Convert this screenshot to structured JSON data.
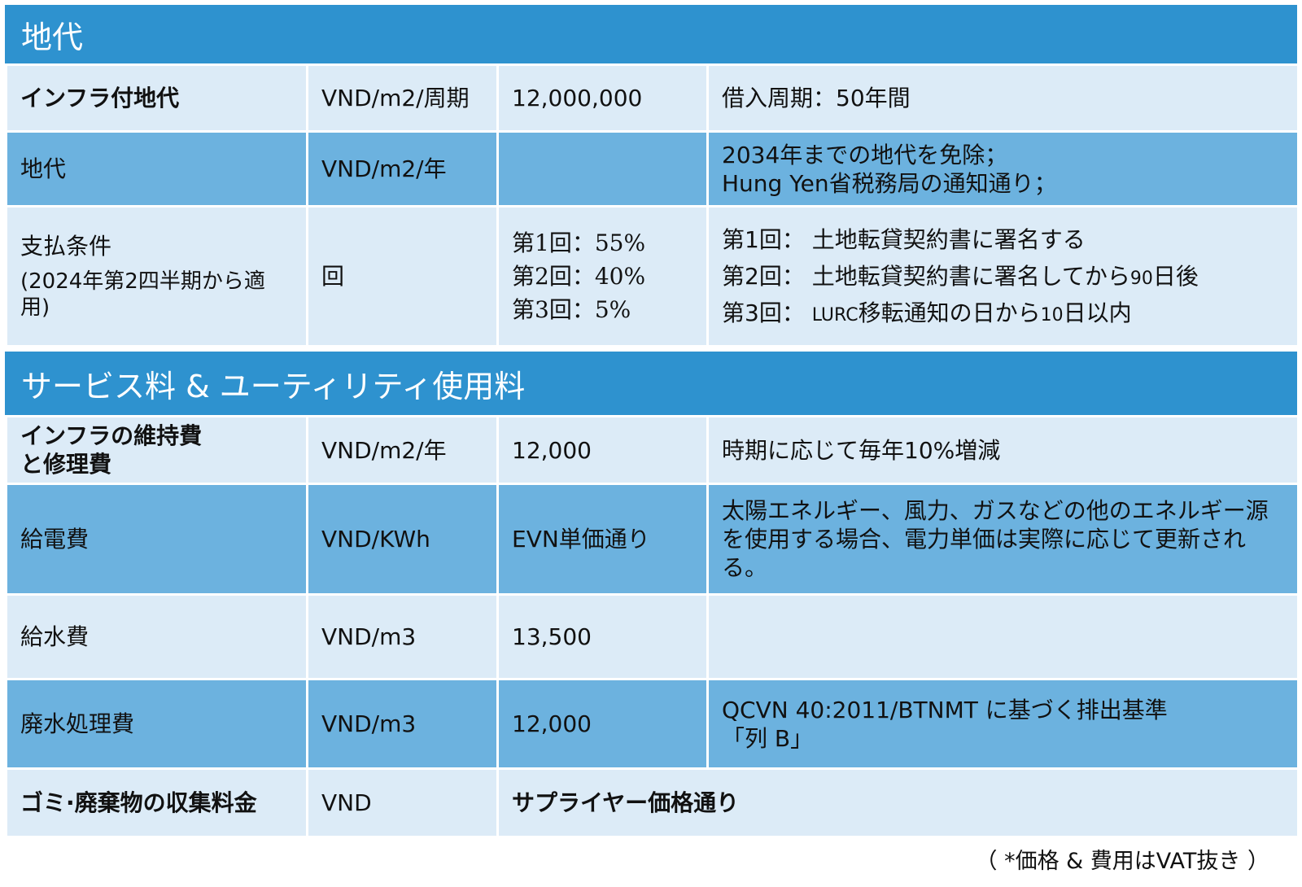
{
  "sections": {
    "land": {
      "title": "地代"
    },
    "service": {
      "title": "サービス料 & ユーティリティ使用料"
    }
  },
  "land_rows": {
    "infra": {
      "name": "インフラ付地代",
      "unit": "VND/m2/周期",
      "value": "12,000,000",
      "note": "借入周期：50年間"
    },
    "rent": {
      "name": "地代",
      "unit": "VND/m2/年",
      "value": "",
      "note_line1": "2034年までの地代を免除；",
      "note_line2": "Hung Yen省税務局の通知通り；"
    },
    "payment": {
      "name": "支払条件",
      "name_sub": "(2024年第2四半期から適用)",
      "unit": "回",
      "value_line1": "第1回：55%",
      "value_line2": "第2回：40%",
      "value_line3": "第3回：5%",
      "note_line1_label": "第1回：",
      "note_line1_text": "土地転貸契約書に署名する",
      "note_line2_label": "第2回：",
      "note_line2_text": "土地転貸契約書に署名してから",
      "note_line2_num": "90",
      "note_line2_tail": "日後",
      "note_line3_label": "第3回：",
      "note_line3_lurc": "LURC",
      "note_line3_text": "移転通知の日から",
      "note_line3_num": "10",
      "note_line3_tail": "日以内"
    }
  },
  "service_rows": {
    "maintenance": {
      "name_line1": "インフラの維持費",
      "name_line2": "と修理費",
      "unit": "VND/m2/年",
      "value": "12,000",
      "note": "時期に応じて毎年10%増減"
    },
    "electricity": {
      "name": "給電費",
      "unit": "VND/KWh",
      "value": "EVN単価通り",
      "note": "太陽エネルギー、風力、ガスなどの他のエネルギー源を使用する場合、電力単価は実際に応じて更新される。"
    },
    "water": {
      "name": "給水費",
      "unit": "VND/m3",
      "value": "13,500",
      "note": ""
    },
    "wastewater": {
      "name": "廃水処理費",
      "unit": "VND/m3",
      "value": "12,000",
      "note_line1": "QCVN 40:2011/BTNMT に基づく排出基準",
      "note_line2": "「列 B」"
    },
    "garbage": {
      "name": "ゴミ·廃棄物の収集料金",
      "unit": "VND",
      "value": "サプライヤー価格通り"
    }
  },
  "footnote": "（ *価格 & 費用はVAT抜き ）"
}
